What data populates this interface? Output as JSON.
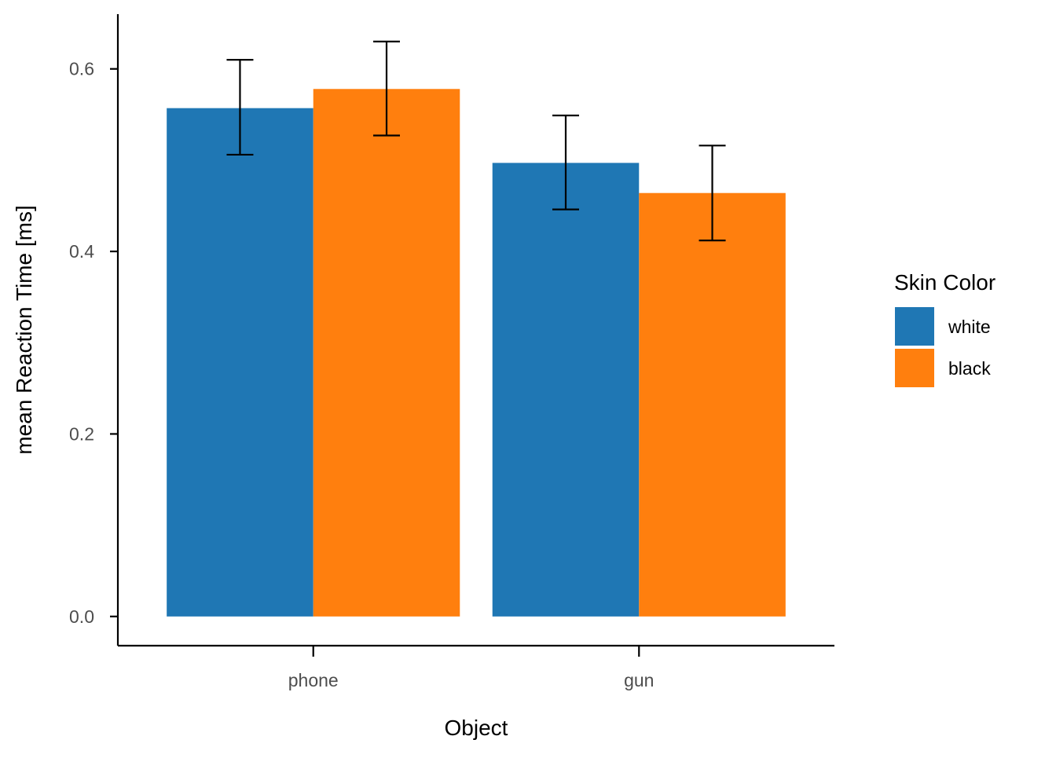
{
  "chart_data": {
    "type": "bar",
    "title": "",
    "xlabel": "Object",
    "ylabel": "mean Reaction Time [ms]",
    "categories": [
      "phone",
      "gun"
    ],
    "series": [
      {
        "name": "white",
        "color": "#1f77b4",
        "values": [
          0.557,
          0.497
        ],
        "error_low": [
          0.506,
          0.446
        ],
        "error_high": [
          0.61,
          0.549
        ]
      },
      {
        "name": "black",
        "color": "#ff7f0e",
        "values": [
          0.578,
          0.464
        ],
        "error_low": [
          0.527,
          0.412
        ],
        "error_high": [
          0.63,
          0.516
        ]
      }
    ],
    "ylim": [
      -0.032,
      0.66
    ],
    "yticks": [
      0.0,
      0.2,
      0.4,
      0.6
    ],
    "ytick_labels": [
      "0.0",
      "0.2",
      "0.4",
      "0.6"
    ],
    "grid": false,
    "legend": {
      "title": "Skin Color",
      "placement": "right"
    },
    "error_bars": true
  }
}
